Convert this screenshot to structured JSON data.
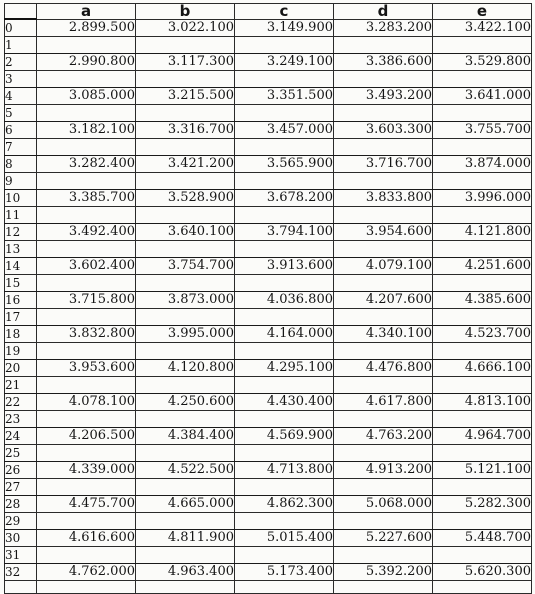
{
  "table": {
    "header": {
      "step": "",
      "columns": [
        "a",
        "b",
        "c",
        "d",
        "e"
      ]
    },
    "rows": [
      {
        "step": "0",
        "values": [
          "2.899.500",
          "3.022.100",
          "3.149.900",
          "3.283.200",
          "3.422.100"
        ]
      },
      {
        "step": "1",
        "values": []
      },
      {
        "step": "2",
        "values": [
          "2.990.800",
          "3.117.300",
          "3.249.100",
          "3.386.600",
          "3.529.800"
        ]
      },
      {
        "step": "3",
        "values": []
      },
      {
        "step": "4",
        "values": [
          "3.085.000",
          "3.215.500",
          "3.351.500",
          "3.493.200",
          "3.641.000"
        ]
      },
      {
        "step": "5",
        "values": []
      },
      {
        "step": "6",
        "values": [
          "3.182.100",
          "3.316.700",
          "3.457.000",
          "3.603.300",
          "3.755.700"
        ]
      },
      {
        "step": "7",
        "values": []
      },
      {
        "step": "8",
        "values": [
          "3.282.400",
          "3.421.200",
          "3.565.900",
          "3.716.700",
          "3.874.000"
        ]
      },
      {
        "step": "9",
        "values": []
      },
      {
        "step": "10",
        "values": [
          "3.385.700",
          "3.528.900",
          "3.678.200",
          "3.833.800",
          "3.996.000"
        ]
      },
      {
        "step": "11",
        "values": []
      },
      {
        "step": "12",
        "values": [
          "3.492.400",
          "3.640.100",
          "3.794.100",
          "3.954.600",
          "4.121.800"
        ]
      },
      {
        "step": "13",
        "values": []
      },
      {
        "step": "14",
        "values": [
          "3.602.400",
          "3.754.700",
          "3.913.600",
          "4.079.100",
          "4.251.600"
        ]
      },
      {
        "step": "15",
        "values": []
      },
      {
        "step": "16",
        "values": [
          "3.715.800",
          "3.873.000",
          "4.036.800",
          "4.207.600",
          "4.385.600"
        ]
      },
      {
        "step": "17",
        "values": []
      },
      {
        "step": "18",
        "values": [
          "3.832.800",
          "3.995.000",
          "4.164.000",
          "4.340.100",
          "4.523.700"
        ]
      },
      {
        "step": "19",
        "values": []
      },
      {
        "step": "20",
        "values": [
          "3.953.600",
          "4.120.800",
          "4.295.100",
          "4.476.800",
          "4.666.100"
        ]
      },
      {
        "step": "21",
        "values": []
      },
      {
        "step": "22",
        "values": [
          "4.078.100",
          "4.250.600",
          "4.430.400",
          "4.617.800",
          "4.813.100"
        ]
      },
      {
        "step": "23",
        "values": []
      },
      {
        "step": "24",
        "values": [
          "4.206.500",
          "4.384.400",
          "4.569.900",
          "4.763.200",
          "4.964.700"
        ]
      },
      {
        "step": "25",
        "values": []
      },
      {
        "step": "26",
        "values": [
          "4.339.000",
          "4.522.500",
          "4.713.800",
          "4.913.200",
          "5.121.100"
        ]
      },
      {
        "step": "27",
        "values": []
      },
      {
        "step": "28",
        "values": [
          "4.475.700",
          "4.665.000",
          "4.862.300",
          "5.068.000",
          "5.282.300"
        ]
      },
      {
        "step": "29",
        "values": []
      },
      {
        "step": "30",
        "values": [
          "4.616.600",
          "4.811.900",
          "5.015.400",
          "5.227.600",
          "5.448.700"
        ]
      },
      {
        "step": "31",
        "values": []
      },
      {
        "step": "32",
        "values": [
          "4.762.000",
          "4.963.400",
          "5.173.400",
          "5.392.200",
          "5.620.300"
        ]
      }
    ]
  },
  "colors": {
    "background": "#fbfbf9",
    "text": "#151515",
    "grid": "#2a2a2a"
  }
}
